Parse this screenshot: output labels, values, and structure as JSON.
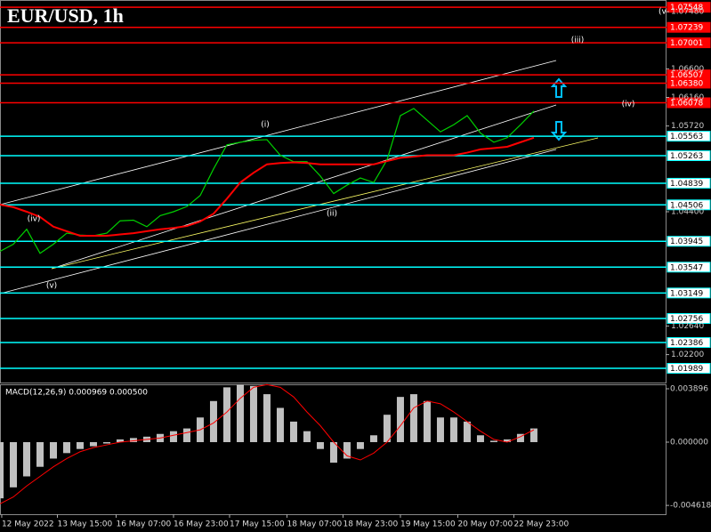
{
  "chart_data": [
    {
      "type": "line",
      "title": "EUR/USD, 1h",
      "x": [
        0,
        1,
        2,
        3,
        4,
        5,
        6,
        7,
        8,
        9,
        10,
        11,
        12,
        13,
        14,
        15,
        16,
        17,
        18,
        19,
        20,
        21,
        22,
        23,
        24,
        25,
        26,
        27,
        28,
        29,
        30,
        31,
        32,
        33,
        34,
        35,
        36,
        37,
        38,
        39,
        40
      ],
      "xlim": [
        0,
        49.87
      ],
      "xticks": [
        {
          "value": 0.13,
          "label": "12 May 2022"
        },
        {
          "value": 4.3,
          "label": "13 May 15:00"
        },
        {
          "value": 8.7,
          "label": "16 May 07:00"
        },
        {
          "value": 13,
          "label": "16 May 23:00"
        },
        {
          "value": 17.2,
          "label": "17 May 15:00"
        },
        {
          "value": 21.5,
          "label": "18 May 07:00"
        },
        {
          "value": 25.7,
          "label": "18 May 23:00"
        },
        {
          "value": 30,
          "label": "19 May 15:00"
        },
        {
          "value": 34.3,
          "label": "20 May 07:00"
        },
        {
          "value": 38.5,
          "label": "22 May 23:00"
        }
      ],
      "ylim": [
        1.0177,
        1.0766
      ],
      "yticks": [
        {
          "value": 1.0748,
          "label": "1.07480"
        },
        {
          "value": 1.066,
          "label": "1.06600"
        },
        {
          "value": 1.0616,
          "label": "1.06160"
        },
        {
          "value": 1.0572,
          "label": "1.05720"
        },
        {
          "value": 1.044,
          "label": "1.04400"
        },
        {
          "value": 1.0264,
          "label": "1.02640"
        },
        {
          "value": 1.022,
          "label": "1.02200"
        }
      ],
      "levels": [
        {
          "value": 1.07548,
          "label": "1.07548",
          "color": "#ff0000"
        },
        {
          "value": 1.07239,
          "label": "1.07239",
          "color": "#ff0000"
        },
        {
          "value": 1.07001,
          "label": "1.07001",
          "color": "#ff0000"
        },
        {
          "value": 1.06507,
          "label": "1.06507",
          "color": "#ff0000"
        },
        {
          "value": 1.0638,
          "label": "1.06380",
          "color": "#ff0000"
        },
        {
          "value": 1.06078,
          "label": "1.06078",
          "color": "#ff0000"
        },
        {
          "value": 1.05563,
          "label": "1.05563",
          "color": "#00ffff"
        },
        {
          "value": 1.05263,
          "label": "1.05263",
          "color": "#00ffff"
        },
        {
          "value": 1.04839,
          "label": "1.04839",
          "color": "#00ffff"
        },
        {
          "value": 1.04506,
          "label": "1.04506",
          "color": "#00ffff"
        },
        {
          "value": 1.03945,
          "label": "1.03945",
          "color": "#00ffff"
        },
        {
          "value": 1.03547,
          "label": "1.03547",
          "color": "#00ffff"
        },
        {
          "value": 1.03149,
          "label": "1.03149",
          "color": "#00ffff"
        },
        {
          "value": 1.02756,
          "label": "1.02756",
          "color": "#00ffff"
        },
        {
          "value": 1.02386,
          "label": "1.02386",
          "color": "#00ffff"
        },
        {
          "value": 1.01989,
          "label": "1.01989",
          "color": "#00ffff"
        }
      ],
      "annotations": [
        "(i)",
        "(ii)",
        "(iv)",
        "(v)",
        "(iii)",
        "(iv)",
        "(v"
      ],
      "series": [
        {
          "name": "EUR/USD",
          "color": "#00d000",
          "values": [
            1.0379,
            1.039,
            1.0413,
            1.0376,
            1.039,
            1.0407,
            1.0404,
            1.0403,
            1.0407,
            1.0426,
            1.0427,
            1.0417,
            1.0434,
            1.044,
            1.0448,
            1.0465,
            1.0506,
            1.0543,
            1.0547,
            1.055,
            1.0551,
            1.0527,
            1.0517,
            1.0517,
            1.0495,
            1.0468,
            1.0481,
            1.0492,
            1.0485,
            1.052,
            1.0588,
            1.0599,
            1.0581,
            1.0563,
            1.0574,
            1.0588,
            1.0561,
            1.0547,
            1.0554,
            1.0574,
            1.0595
          ]
        },
        {
          "name": "MA",
          "color": "#ff0000",
          "values": [
            1.0451,
            1.0447,
            1.044,
            1.0432,
            1.0417,
            1.041,
            1.0403,
            1.0403,
            1.0403,
            1.0405,
            1.0407,
            1.041,
            1.0413,
            1.0415,
            1.0418,
            1.0425,
            1.0437,
            1.046,
            1.0485,
            1.05,
            1.0513,
            1.0515,
            1.0516,
            1.0515,
            1.0513,
            1.0513,
            1.0513,
            1.0513,
            1.0513,
            1.0518,
            1.0523,
            1.0525,
            1.0527,
            1.0527,
            1.0527,
            1.0531,
            1.0536,
            1.0538,
            1.054,
            1.0547,
            1.0554
          ]
        }
      ]
    },
    {
      "type": "bar",
      "title": "MACD(12,26,9) 0.000969 0.000500",
      "ylim": [
        -0.00539,
        0.00422
      ],
      "yticks": [
        {
          "value": 0.003896,
          "label": "0.003896"
        },
        {
          "value": 0,
          "label": "0.000000"
        },
        {
          "value": -0.004618,
          "label": "-0.004618"
        }
      ],
      "color": "#c0c0c0",
      "values": [
        -0.0041,
        -0.0033,
        -0.0025,
        -0.0018,
        -0.0012,
        -0.0008,
        -0.0005,
        -0.0003,
        -0.0001,
        0.0002,
        0.0003,
        0.0004,
        0.0006,
        0.0008,
        0.001,
        0.0018,
        0.003,
        0.004,
        0.0042,
        0.0041,
        0.0035,
        0.0025,
        0.0015,
        0.0008,
        -0.0005,
        -0.0015,
        -0.0012,
        -0.0005,
        0.0005,
        0.002,
        0.0033,
        0.0035,
        0.003,
        0.0018,
        0.0018,
        0.0015,
        0.0005,
        0.0001,
        0.0002,
        0.0006,
        0.001
      ],
      "signal": {
        "color": "#ff0000",
        "values": [
          -0.0045,
          -0.004,
          -0.0032,
          -0.0025,
          -0.0018,
          -0.0012,
          -0.0007,
          -0.0004,
          -0.0002,
          0,
          0.0001,
          0.0002,
          0.0003,
          0.0005,
          0.0007,
          0.0009,
          0.0014,
          0.0022,
          0.0032,
          0.004,
          0.0042,
          0.004,
          0.0033,
          0.0022,
          0.0012,
          0,
          -0.001,
          -0.0013,
          -0.0008,
          0,
          0.0012,
          0.0025,
          0.003,
          0.0028,
          0.0022,
          0.0015,
          0.0008,
          0.0002,
          0,
          0.0004,
          0.0009
        ]
      }
    }
  ]
}
